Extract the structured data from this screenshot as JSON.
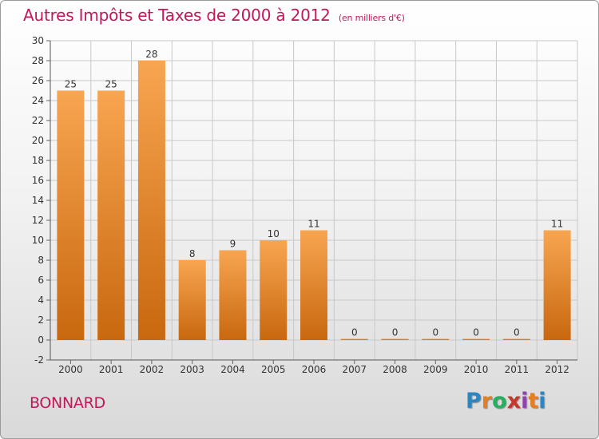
{
  "header": {
    "title": "Autres Impôts et Taxes de 2000 à 2012",
    "subtitle": "(en milliers d'€)"
  },
  "footer": {
    "location": "BONNARD",
    "brand": {
      "letters": [
        "P",
        "r",
        "o",
        "x",
        "i",
        "t",
        "i"
      ],
      "colors": [
        "#2e86c1",
        "#e67e22",
        "#27ae60",
        "#c0392b",
        "#8e44ad",
        "#e67e22",
        "#2e86c1"
      ]
    }
  },
  "chart_data": {
    "type": "bar",
    "categories": [
      "2000",
      "2001",
      "2002",
      "2003",
      "2004",
      "2005",
      "2006",
      "2007",
      "2008",
      "2009",
      "2010",
      "2011",
      "2012"
    ],
    "values": [
      25,
      25,
      28,
      8,
      9,
      10,
      11,
      0,
      0,
      0,
      0,
      0,
      11
    ],
    "data_labels": [
      "25",
      "25",
      "28",
      "8",
      "9",
      "10",
      "11",
      "0",
      "0",
      "0",
      "0",
      "0",
      "11"
    ],
    "yticks": [
      "-2",
      "0",
      "2",
      "4",
      "6",
      "8",
      "10",
      "12",
      "14",
      "16",
      "18",
      "20",
      "22",
      "24",
      "26",
      "28",
      "30"
    ],
    "ylim": [
      -2,
      30
    ],
    "grid": true,
    "colors": {
      "bar_top": "#f8a551",
      "bar_bottom": "#c8680f",
      "grid": "#c8c8c8",
      "text": "#333333"
    }
  }
}
